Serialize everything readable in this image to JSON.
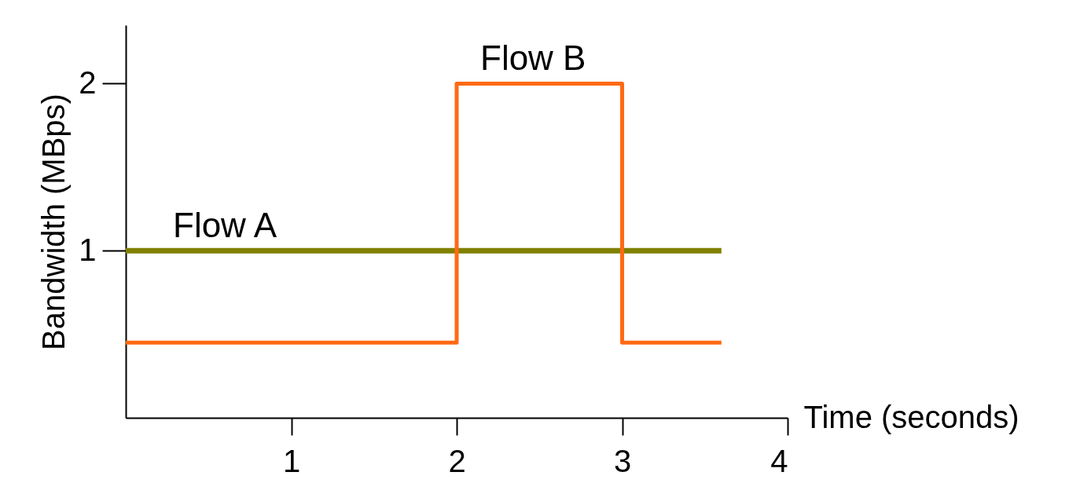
{
  "chart_data": {
    "type": "line",
    "xlabel": "Time (seconds)",
    "ylabel": "Bandwidth (MBps)",
    "xlim": [
      0,
      4
    ],
    "ylim": [
      0,
      2.35
    ],
    "xticks": [
      1,
      2,
      3,
      4
    ],
    "yticks": [
      1,
      2
    ],
    "grid": false,
    "legend": false,
    "series": [
      {
        "name": "Flow A",
        "color": "#808000",
        "x": [
          0,
          3.6
        ],
        "values": [
          1,
          1
        ]
      },
      {
        "name": "Flow B",
        "type": "step",
        "color": "#ff6a13",
        "x": [
          0,
          2,
          3,
          3.6
        ],
        "values": [
          0.45,
          2,
          0.45,
          0.45
        ]
      }
    ]
  }
}
